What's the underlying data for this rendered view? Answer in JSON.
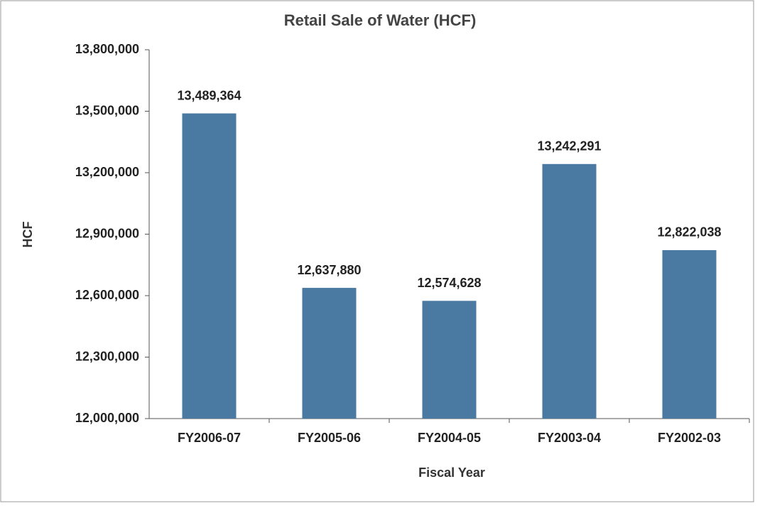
{
  "chart_data": {
    "type": "bar",
    "title": "Retail Sale of Water (HCF)",
    "x_label": "Fiscal Year",
    "y_label": "HCF",
    "categories": [
      "FY2006-07",
      "FY2005-06",
      "FY2004-05",
      "FY2003-04",
      "FY2002-03"
    ],
    "values": [
      13489364,
      12637880,
      12574628,
      13242291,
      12822038
    ],
    "value_labels": [
      "13,489,364",
      "12,637,880",
      "12,574,628",
      "13,242,291",
      "12,822,038"
    ],
    "color": "#4a7aa2",
    "ylim": [
      12000000,
      13800000
    ],
    "yticks": [
      {
        "value": 12000000,
        "label": "12,000,000"
      },
      {
        "value": 12300000,
        "label": "12,300,000"
      },
      {
        "value": 12600000,
        "label": "12,600,000"
      },
      {
        "value": 12900000,
        "label": "12,900,000"
      },
      {
        "value": 13200000,
        "label": "13,200,000"
      },
      {
        "value": 13500000,
        "label": "13,500,000"
      },
      {
        "value": 13800000,
        "label": "13,800,000"
      }
    ]
  }
}
